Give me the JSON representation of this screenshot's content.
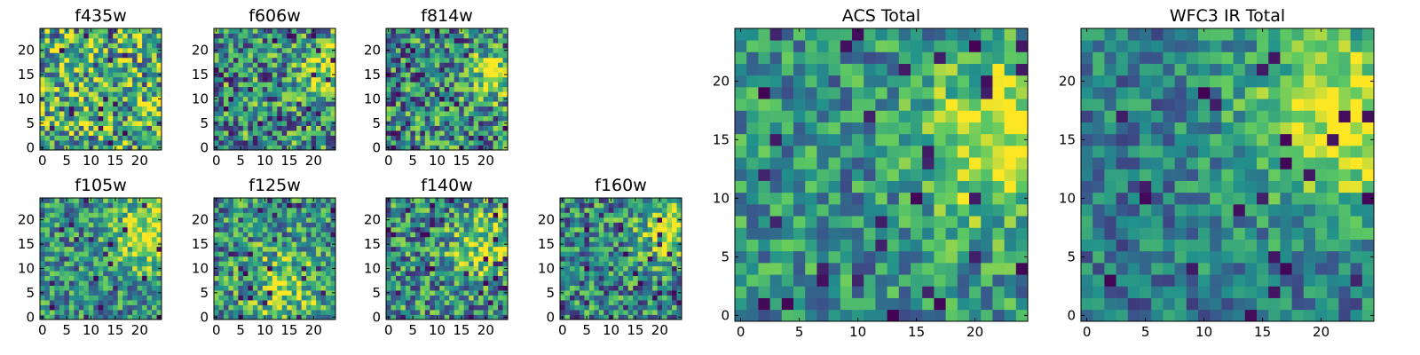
{
  "figure": {
    "colormap": "viridis",
    "colors": [
      "#440154",
      "#3b528b",
      "#21918c",
      "#5ec962",
      "#fde725"
    ]
  },
  "chart_data": [
    {
      "type": "heatmap",
      "title": "f435w",
      "grid_size": 25,
      "xlim": [
        0,
        24
      ],
      "ylim": [
        0,
        24
      ],
      "xticks": [
        "0",
        "5",
        "10",
        "15",
        "20"
      ],
      "yticks": [
        "0",
        "5",
        "10",
        "15",
        "20"
      ],
      "generator": {
        "seed": 11,
        "noise": 0.55,
        "hotspot": null,
        "cold_fraction": 0.03,
        "base": 0.62
      }
    },
    {
      "type": "heatmap",
      "title": "f606w",
      "grid_size": 25,
      "xlim": [
        0,
        24
      ],
      "ylim": [
        0,
        24
      ],
      "xticks": [
        "0",
        "5",
        "10",
        "15",
        "20"
      ],
      "yticks": [
        "0",
        "5",
        "10",
        "15",
        "20"
      ],
      "generator": {
        "seed": 23,
        "noise": 0.5,
        "hotspot": [
          23,
          16,
          4,
          0.4
        ],
        "cold_fraction": 0.04,
        "base": 0.5
      }
    },
    {
      "type": "heatmap",
      "title": "f814w",
      "grid_size": 25,
      "xlim": [
        0,
        24
      ],
      "ylim": [
        0,
        24
      ],
      "xticks": [
        "0",
        "5",
        "10",
        "15",
        "20"
      ],
      "yticks": [
        "0",
        "5",
        "10",
        "15",
        "20"
      ],
      "generator": {
        "seed": 37,
        "noise": 0.5,
        "hotspot": [
          23,
          15,
          4,
          0.45
        ],
        "cold_fraction": 0.05,
        "base": 0.48
      }
    },
    {
      "type": "heatmap",
      "title": "f105w",
      "grid_size": 25,
      "xlim": [
        0,
        24
      ],
      "ylim": [
        0,
        24
      ],
      "xticks": [
        "0",
        "5",
        "10",
        "15",
        "20"
      ],
      "yticks": [
        "0",
        "5",
        "10",
        "15",
        "20"
      ],
      "generator": {
        "seed": 41,
        "noise": 0.4,
        "hotspot": [
          22,
          17,
          5,
          0.45
        ],
        "cold_fraction": 0.03,
        "base": 0.5
      }
    },
    {
      "type": "heatmap",
      "title": "f125w",
      "grid_size": 25,
      "xlim": [
        0,
        24
      ],
      "ylim": [
        0,
        24
      ],
      "xticks": [
        "0",
        "5",
        "10",
        "15",
        "20"
      ],
      "yticks": [
        "0",
        "5",
        "10",
        "15",
        "20"
      ],
      "generator": {
        "seed": 53,
        "noise": 0.45,
        "hotspot": [
          15,
          6,
          6,
          0.3
        ],
        "cold_fraction": 0.05,
        "base": 0.5
      }
    },
    {
      "type": "heatmap",
      "title": "f140w",
      "grid_size": 25,
      "xlim": [
        0,
        24
      ],
      "ylim": [
        0,
        24
      ],
      "xticks": [
        "0",
        "5",
        "10",
        "15",
        "20"
      ],
      "yticks": [
        "0",
        "5",
        "10",
        "15",
        "20"
      ],
      "generator": {
        "seed": 67,
        "noise": 0.45,
        "hotspot": [
          20,
          15,
          5,
          0.35
        ],
        "cold_fraction": 0.05,
        "base": 0.5
      }
    },
    {
      "type": "heatmap",
      "title": "f160w",
      "grid_size": 25,
      "xlim": [
        0,
        24
      ],
      "ylim": [
        0,
        24
      ],
      "xticks": [
        "0",
        "5",
        "10",
        "15",
        "20"
      ],
      "yticks": [
        "0",
        "5",
        "10",
        "15",
        "20"
      ],
      "generator": {
        "seed": 79,
        "noise": 0.45,
        "hotspot": [
          23,
          19,
          5,
          0.45
        ],
        "cold_fraction": 0.04,
        "base": 0.47
      }
    },
    {
      "type": "heatmap",
      "title": "ACS Total",
      "grid_size": 25,
      "xlim": [
        0,
        24
      ],
      "ylim": [
        0,
        24
      ],
      "xticks": [
        "0",
        "5",
        "10",
        "15",
        "20"
      ],
      "yticks": [
        "0",
        "5",
        "10",
        "15",
        "20"
      ],
      "generator": {
        "seed": 97,
        "noise": 0.35,
        "hotspot": [
          23,
          15,
          5,
          0.5
        ],
        "cold_fraction": 0.05,
        "base": 0.5
      }
    },
    {
      "type": "heatmap",
      "title": "WFC3 IR Total",
      "grid_size": 25,
      "xlim": [
        0,
        24
      ],
      "ylim": [
        0,
        24
      ],
      "xticks": [
        "0",
        "5",
        "10",
        "15",
        "20"
      ],
      "yticks": [
        "0",
        "5",
        "10",
        "15",
        "20"
      ],
      "generator": {
        "seed": 131,
        "noise": 0.3,
        "hotspot": [
          22,
          17,
          6,
          0.55
        ],
        "cold_fraction": 0.04,
        "base": 0.42
      }
    }
  ]
}
